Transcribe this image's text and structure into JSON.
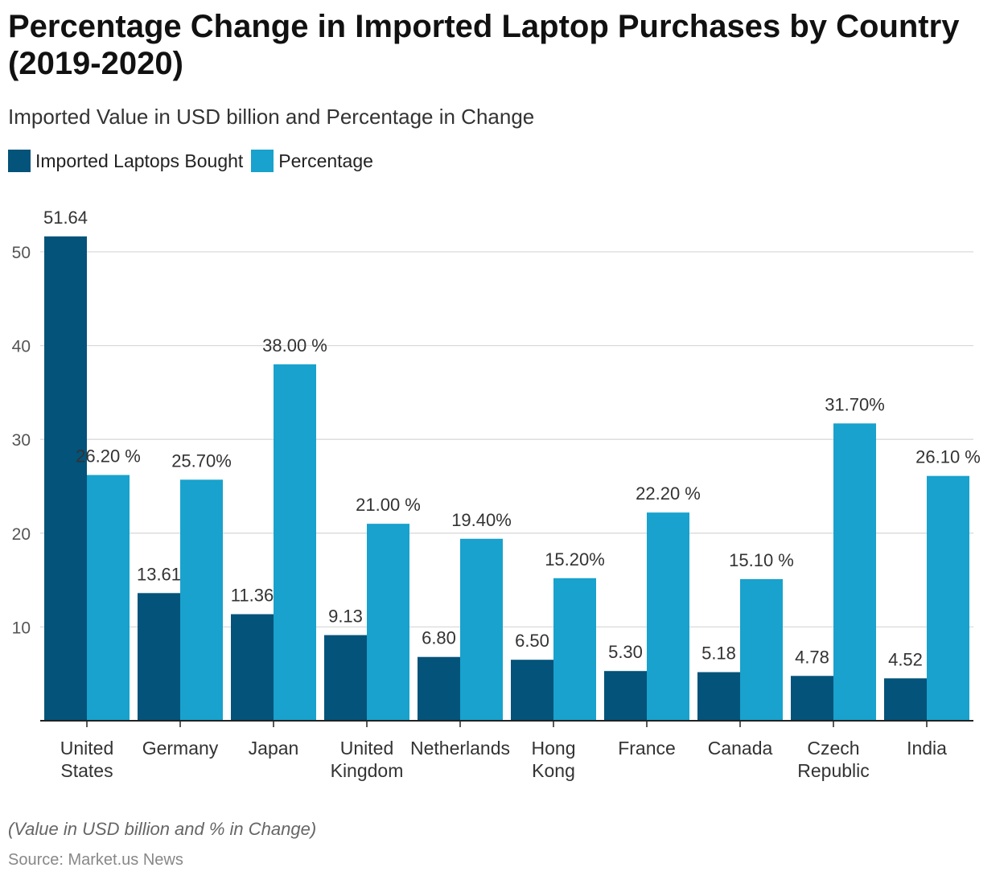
{
  "title": "Percentage Change in Imported Laptop Purchases by Country (2019-2020)",
  "subtitle": "Imported Value in USD billion and Percentage in Change",
  "note": "(Value in USD billion and % in Change)",
  "source": "Source: Market.us News",
  "colors": {
    "imported": "#03537a",
    "percentage": "#18a2cd",
    "grid": "#d9d9d9",
    "axis": "#222222"
  },
  "chart_data": {
    "type": "bar",
    "categories": [
      [
        "United",
        "States"
      ],
      [
        "Germany"
      ],
      [
        "Japan"
      ],
      [
        "United",
        "Kingdom"
      ],
      [
        "Netherlands"
      ],
      [
        "Hong",
        "Kong"
      ],
      [
        "France"
      ],
      [
        "Canada"
      ],
      [
        "Czech",
        "Republic"
      ],
      [
        "India"
      ]
    ],
    "series": [
      {
        "name": "Imported Laptops Bought",
        "values": [
          51.64,
          13.61,
          11.36,
          9.13,
          6.8,
          6.5,
          5.3,
          5.18,
          4.78,
          4.52
        ],
        "labels": [
          "51.64",
          "13.61",
          "11.36",
          "9.13",
          "6.80",
          "6.50",
          "5.30",
          "5.18",
          "4.78",
          "4.52"
        ]
      },
      {
        "name": "Percentage",
        "values": [
          26.2,
          25.7,
          38.0,
          21.0,
          19.4,
          15.2,
          22.2,
          15.1,
          31.7,
          26.1
        ],
        "labels": [
          "26.20 %",
          "25.70%",
          "38.00 %",
          "21.00 %",
          "19.40%",
          "15.20%",
          "22.20 %",
          "15.10 %",
          "31.70%",
          "26.10 %"
        ]
      }
    ],
    "yticks": [
      10,
      20,
      30,
      40,
      50
    ],
    "ylim": [
      0,
      50
    ],
    "grid": true,
    "legend": "top-left"
  }
}
